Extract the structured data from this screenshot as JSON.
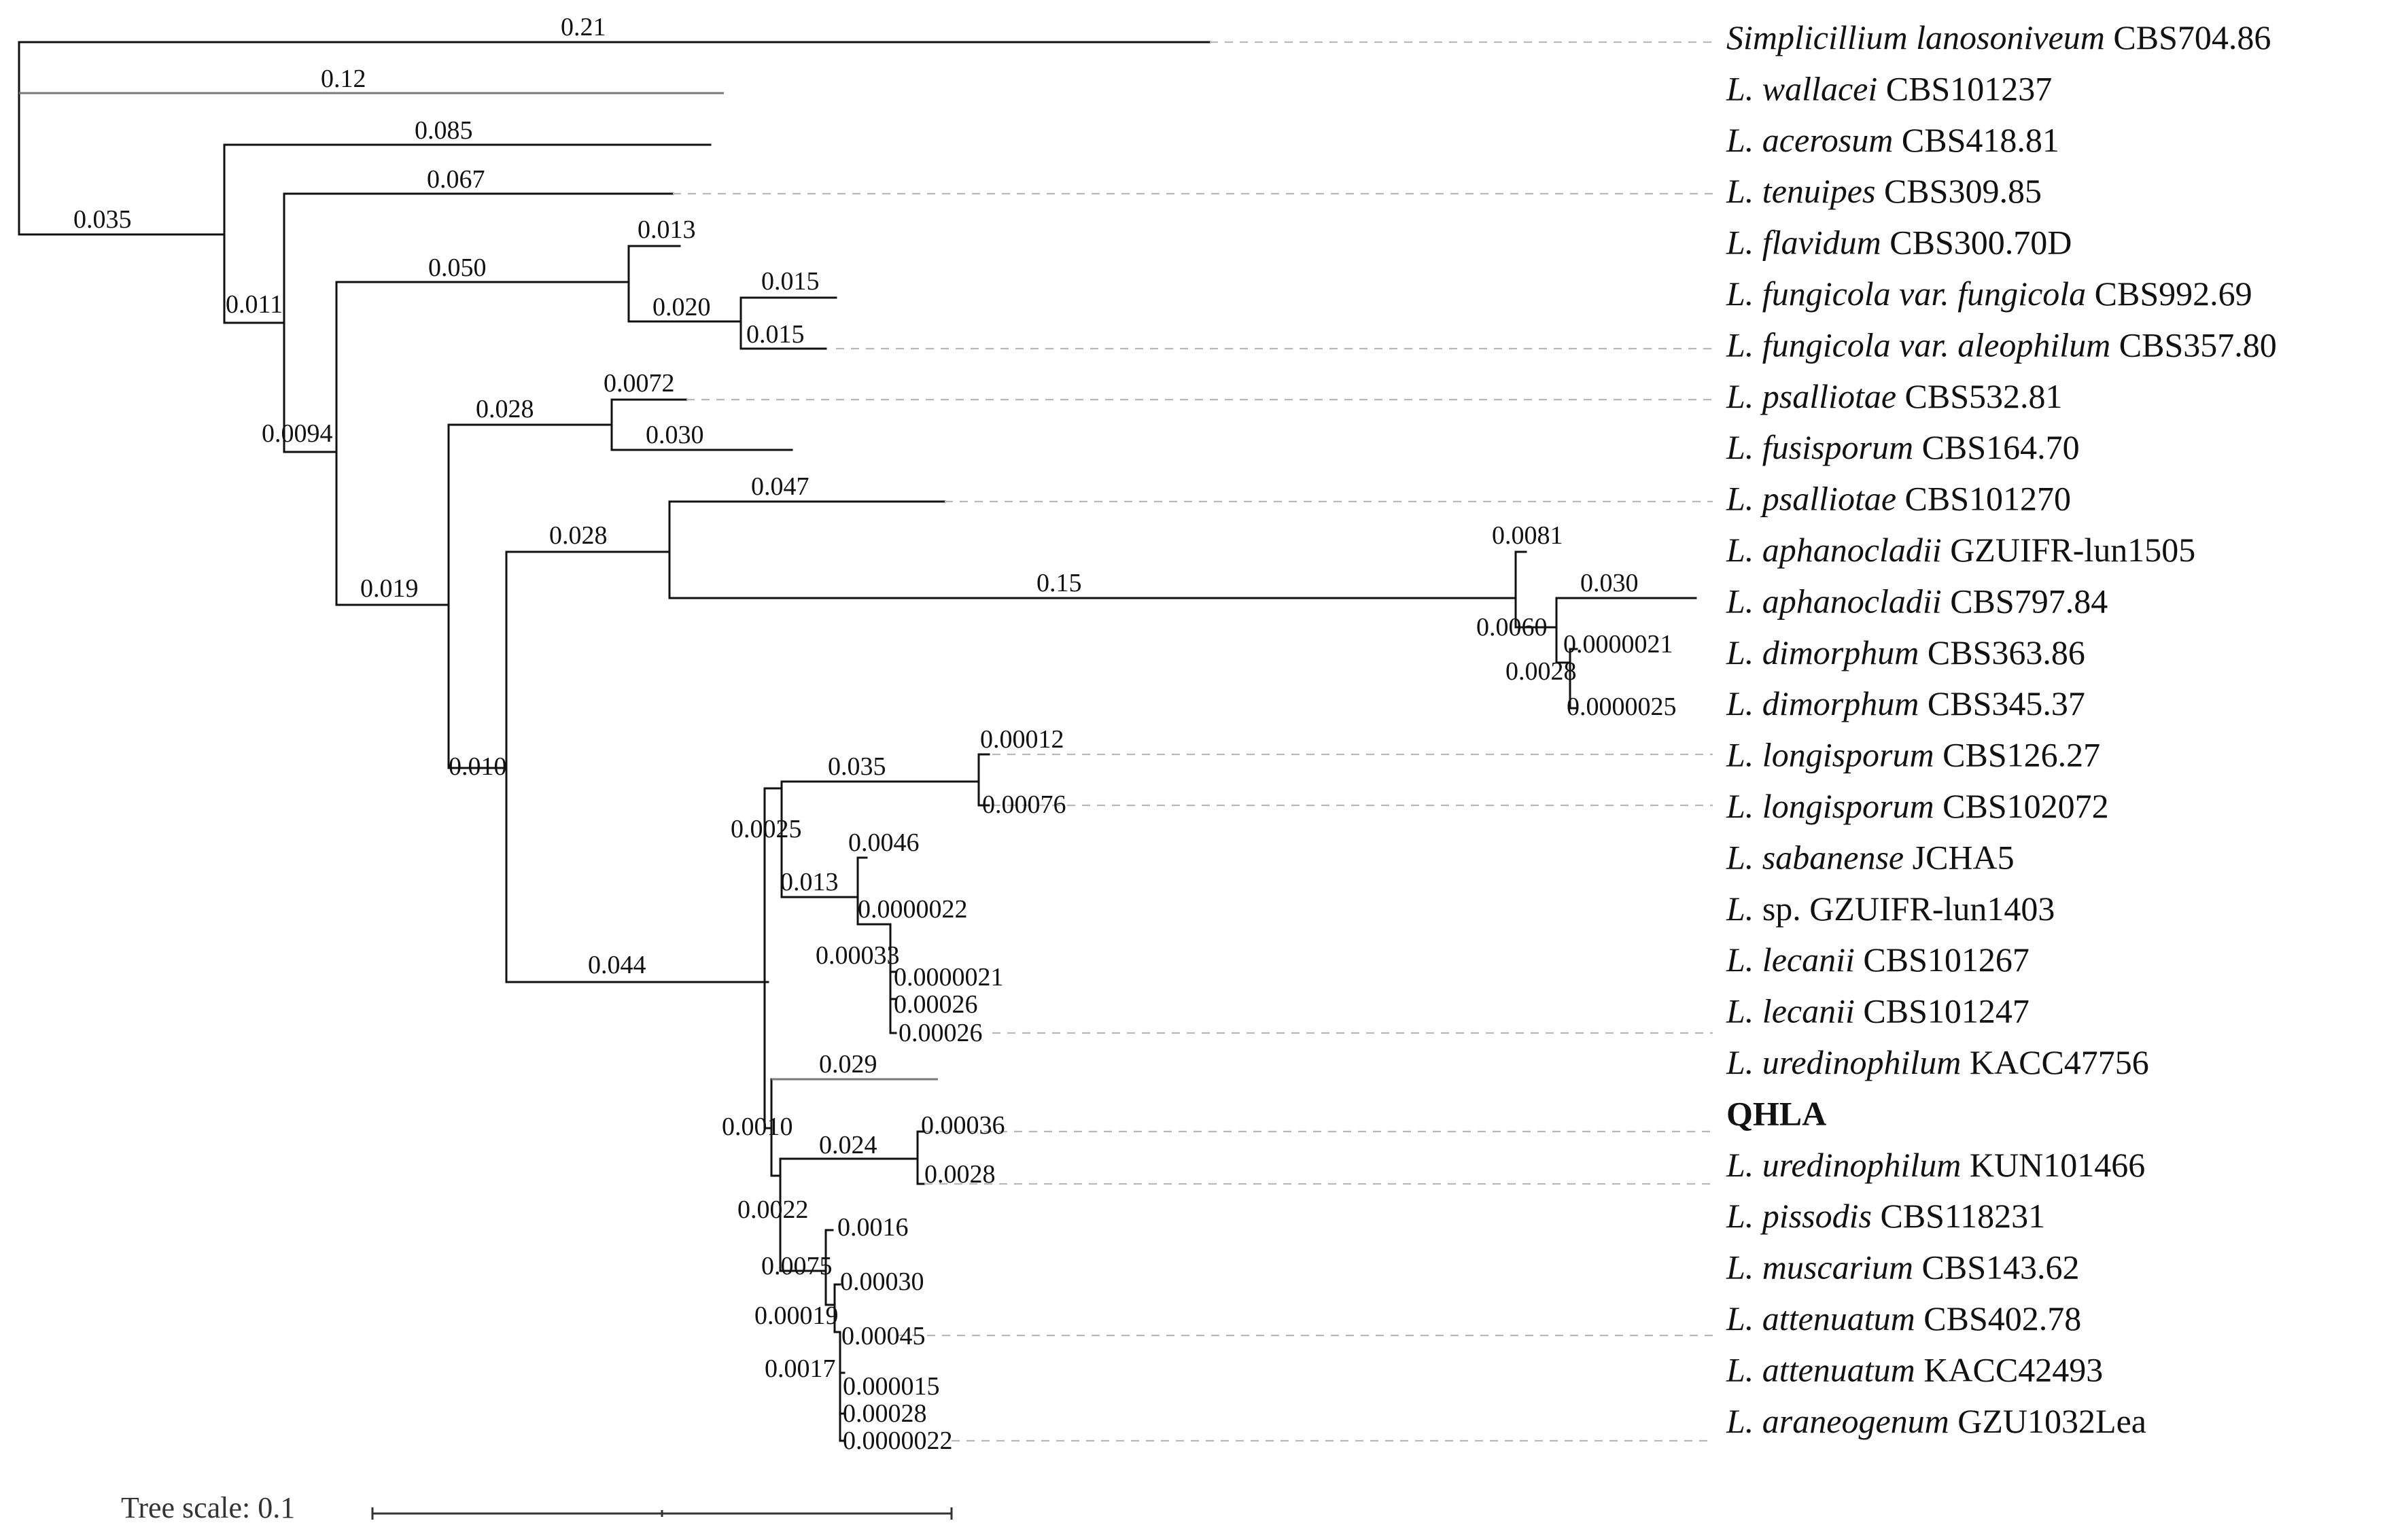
{
  "tree_scale": {
    "label": "Tree scale: 0.1",
    "value": 0.1
  },
  "taxa": [
    {
      "id": "t1",
      "genus": "Simplicillium lanosoniveum",
      "strain": "CBS704.86"
    },
    {
      "id": "t2",
      "genus": "L. wallacei",
      "strain": "CBS101237"
    },
    {
      "id": "t3",
      "genus": "L. acerosum",
      "strain": "CBS418.81"
    },
    {
      "id": "t4",
      "genus": "L. tenuipes",
      "strain": "CBS309.85"
    },
    {
      "id": "t5",
      "genus": "L. flavidum",
      "strain": "CBS300.70D"
    },
    {
      "id": "t6",
      "genus": "L. fungicola var. fungicola",
      "strain": "CBS992.69"
    },
    {
      "id": "t7",
      "genus": "L. fungicola var. aleophilum",
      "strain": "CBS357.80"
    },
    {
      "id": "t8",
      "genus": "L. psalliotae",
      "strain": "CBS532.81"
    },
    {
      "id": "t9",
      "genus": "L. fusisporum",
      "strain": "CBS164.70"
    },
    {
      "id": "t10",
      "genus": "L. psalliotae",
      "strain": "CBS101270"
    },
    {
      "id": "t11",
      "genus": "L. aphanocladii",
      "strain": "GZUIFR-lun1505"
    },
    {
      "id": "t12",
      "genus": "L. aphanocladii",
      "strain": "CBS797.84"
    },
    {
      "id": "t13",
      "genus": "L. dimorphum",
      "strain": "CBS363.86"
    },
    {
      "id": "t14",
      "genus": "L. dimorphum",
      "strain": "CBS345.37"
    },
    {
      "id": "t15",
      "genus": "L. longisporum",
      "strain": "CBS126.27"
    },
    {
      "id": "t16",
      "genus": "L. longisporum",
      "strain": "CBS102072"
    },
    {
      "id": "t17",
      "genus": "L. sabanense",
      "strain": "JCHA5"
    },
    {
      "id": "t18",
      "genus": "L.",
      "strain": "sp. GZUIFR-lun1403"
    },
    {
      "id": "t19",
      "genus": "L. lecanii",
      "strain": "CBS101267"
    },
    {
      "id": "t20",
      "genus": "L. lecanii",
      "strain": "CBS101247"
    },
    {
      "id": "t21",
      "genus": "L. uredinophilum",
      "strain": "KACC47756"
    },
    {
      "id": "t22",
      "genus": "",
      "strain": "QHLA",
      "bold": true
    },
    {
      "id": "t23",
      "genus": "L. uredinophilum",
      "strain": "KUN101466"
    },
    {
      "id": "t24",
      "genus": "L. pissodis",
      "strain": "CBS118231"
    },
    {
      "id": "t25",
      "genus": "L. muscarium",
      "strain": "CBS143.62"
    },
    {
      "id": "t26",
      "genus": "L. attenuatum",
      "strain": "CBS402.78"
    },
    {
      "id": "t27",
      "genus": "L. attenuatum",
      "strain": "KACC42493"
    },
    {
      "id": "t28",
      "genus": "L. araneogenum",
      "strain": "GZU1032Lea"
    }
  ],
  "branch_labels": {
    "b_simp": "0.21",
    "b_wall": "0.12",
    "b_root_in": "0.035",
    "b_acer": "0.085",
    "b_n2": "0.011",
    "b_ten": "0.067",
    "b_n3": "0.0094",
    "b_flavclade": "0.050",
    "b_flav": "0.013",
    "b_fungclade": "0.020",
    "b_fung1": "0.015",
    "b_fung2": "0.015",
    "b_n4": "0.019",
    "b_psalclade": "0.028",
    "b_psal": "0.0072",
    "b_fusi": "0.030",
    "b_n5": "0.010",
    "b_aphclade": "0.028",
    "b_psal2": "0.047",
    "b_aph_long": "0.15",
    "b_aph1": "0.0081",
    "b_n_aph": "0.0060",
    "b_aph2": "0.030",
    "b_dim_node": "0.0028",
    "b_dim1": "0.0000021",
    "b_dim2": "0.0000025",
    "b_big": "0.044",
    "b_c1": "0.0025",
    "b_long_clade": "0.035",
    "b_long1": "0.00012",
    "b_long2": "0.00076",
    "b_c2": "0.013",
    "b_saban": "0.0046",
    "b_sp": "0.0000022",
    "b_lec_node": "0.00033",
    "b_lec1": "0.0000021",
    "b_lec2": "0.00026",
    "b_lec3": "0.00026",
    "b_c3": "0.0010",
    "b_ured1": "0.029",
    "b_qh_clade": "0.024",
    "b_qhla": "0.00036",
    "b_ured2": "0.0028",
    "b_c4": "0.0022",
    "b_piss": "0.0016",
    "b_c5": "0.0075",
    "b_musc": "0.00030",
    "b_c6": "0.00019",
    "b_att1": "0.00045",
    "b_c7": "0.0017",
    "b_att2": "0.000015",
    "b_arn1": "0.00028",
    "b_arn2": "0.0000022"
  }
}
